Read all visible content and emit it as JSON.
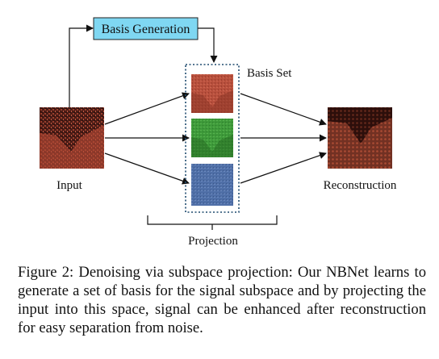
{
  "diagram": {
    "basis_generation_label": "Basis Generation",
    "basis_set_label": "Basis Set",
    "input_label": "Input",
    "reconstruction_label": "Reconstruction",
    "projection_label": "Projection",
    "colors": {
      "basis_box_fill": "#7fd7f2",
      "input_bg": "#4a1c16",
      "input_tex": "#b84d38",
      "basis_red": "#b8503d",
      "basis_green": "#3e9a3a",
      "basis_blue": "#4f6fa7",
      "recon_bg": "#3a1410",
      "recon_tex": "#a2452f",
      "dotted_frame": "#1e4a6e"
    }
  },
  "caption": "Figure 2: Denoising via subspace projection: Our NBNet learns to generate a set of basis for the signal subspace and by projecting the input into this space, signal can be enhanced after reconstruction for easy separation from noise."
}
